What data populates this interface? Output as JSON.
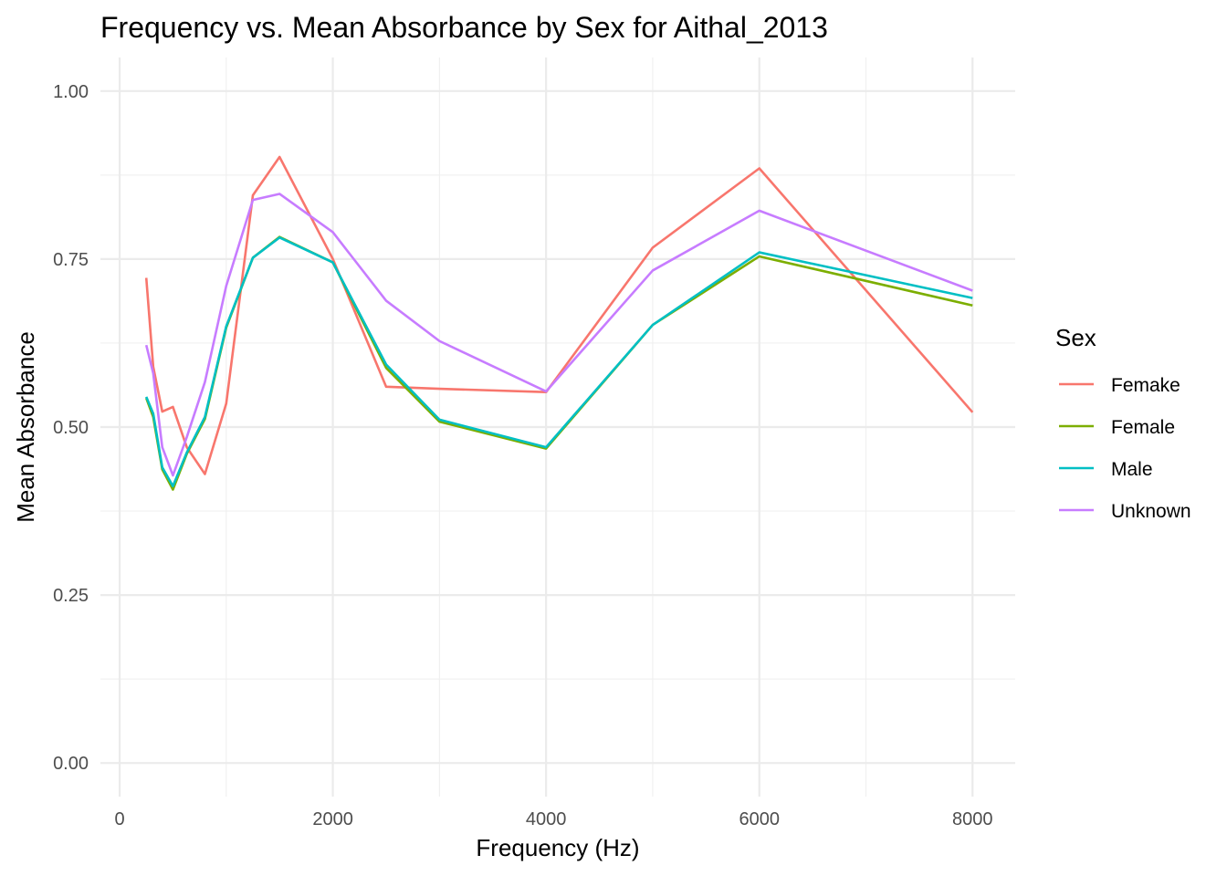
{
  "chart_data": {
    "type": "line",
    "title": "Frequency vs. Mean Absorbance by Sex for Aithal_2013",
    "xlabel": "Frequency (Hz)",
    "ylabel": "Mean Absorbance",
    "xlim": [
      -180,
      8400
    ],
    "ylim": [
      -0.05,
      1.05
    ],
    "x_ticks": [
      0,
      2000,
      4000,
      6000,
      8000
    ],
    "x_tick_labels": [
      "0",
      "2000",
      "4000",
      "6000",
      "8000"
    ],
    "x_minor_ticks": [
      1000,
      3000,
      5000,
      7000
    ],
    "y_ticks": [
      0.0,
      0.25,
      0.5,
      0.75,
      1.0
    ],
    "y_tick_labels": [
      "0.00",
      "0.25",
      "0.50",
      "0.75",
      "1.00"
    ],
    "y_minor_ticks": [
      0.125,
      0.375,
      0.625,
      0.875
    ],
    "grid": true,
    "legend": {
      "title": "Sex",
      "position": "right"
    },
    "series": [
      {
        "name": "Femake",
        "color": "#F8766D",
        "points": [
          [
            250,
            0.722
          ],
          [
            315,
            0.59
          ],
          [
            400,
            0.523
          ],
          [
            500,
            0.53
          ],
          [
            630,
            0.47
          ],
          [
            800,
            0.43
          ],
          [
            1000,
            0.535
          ],
          [
            1250,
            0.845
          ],
          [
            1500,
            0.902
          ],
          [
            2000,
            0.75
          ],
          [
            2500,
            0.56
          ],
          [
            3000,
            0.557
          ],
          [
            4000,
            0.552
          ],
          [
            5000,
            0.767
          ],
          [
            6000,
            0.885
          ],
          [
            8000,
            0.522
          ]
        ]
      },
      {
        "name": "Female",
        "color": "#7CAE00",
        "points": [
          [
            250,
            0.543
          ],
          [
            315,
            0.515
          ],
          [
            400,
            0.437
          ],
          [
            500,
            0.407
          ],
          [
            630,
            0.46
          ],
          [
            800,
            0.512
          ],
          [
            1000,
            0.648
          ],
          [
            1250,
            0.752
          ],
          [
            1500,
            0.783
          ],
          [
            2000,
            0.745
          ],
          [
            2500,
            0.588
          ],
          [
            3000,
            0.508
          ],
          [
            4000,
            0.468
          ],
          [
            5000,
            0.652
          ],
          [
            6000,
            0.754
          ],
          [
            8000,
            0.681
          ]
        ]
      },
      {
        "name": "Male",
        "color": "#00BFC4",
        "points": [
          [
            250,
            0.545
          ],
          [
            315,
            0.52
          ],
          [
            400,
            0.44
          ],
          [
            500,
            0.412
          ],
          [
            630,
            0.462
          ],
          [
            800,
            0.515
          ],
          [
            1000,
            0.65
          ],
          [
            1250,
            0.752
          ],
          [
            1500,
            0.782
          ],
          [
            2000,
            0.745
          ],
          [
            2500,
            0.593
          ],
          [
            3000,
            0.511
          ],
          [
            4000,
            0.47
          ],
          [
            5000,
            0.652
          ],
          [
            6000,
            0.76
          ],
          [
            8000,
            0.692
          ]
        ]
      },
      {
        "name": "Unknown",
        "color": "#C77CFF",
        "points": [
          [
            250,
            0.622
          ],
          [
            315,
            0.58
          ],
          [
            400,
            0.47
          ],
          [
            500,
            0.428
          ],
          [
            630,
            0.485
          ],
          [
            800,
            0.567
          ],
          [
            1000,
            0.71
          ],
          [
            1250,
            0.838
          ],
          [
            1500,
            0.847
          ],
          [
            2000,
            0.79
          ],
          [
            2500,
            0.688
          ],
          [
            3000,
            0.628
          ],
          [
            4000,
            0.553
          ],
          [
            5000,
            0.733
          ],
          [
            6000,
            0.822
          ],
          [
            8000,
            0.703
          ]
        ]
      }
    ]
  }
}
